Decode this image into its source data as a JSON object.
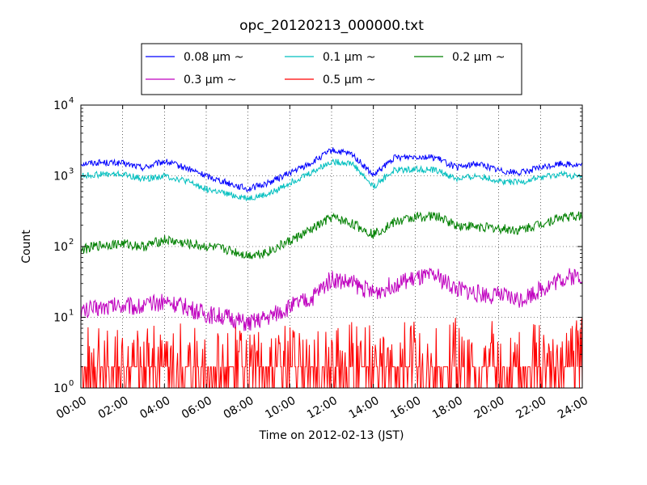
{
  "chart_data": {
    "type": "line",
    "title": "opc_20120213_000000.txt",
    "xlabel": "Time on 2012-02-13 (JST)",
    "ylabel": "Count",
    "yscale": "log",
    "ylim": [
      1,
      10000
    ],
    "xlim": [
      "00:00",
      "24:00"
    ],
    "x_ticks": [
      "00:00",
      "02:00",
      "04:00",
      "06:00",
      "08:00",
      "10:00",
      "12:00",
      "14:00",
      "16:00",
      "18:00",
      "20:00",
      "22:00",
      "24:00"
    ],
    "y_ticks": [
      {
        "value": 1,
        "base": "10",
        "exp": "0"
      },
      {
        "value": 10,
        "base": "10",
        "exp": "1"
      },
      {
        "value": 100,
        "base": "10",
        "exp": "2"
      },
      {
        "value": 1000,
        "base": "10",
        "exp": "3"
      },
      {
        "value": 10000,
        "base": "10",
        "exp": "4"
      }
    ],
    "grid": true,
    "legend": {
      "placement": "top-center",
      "columns": 3
    },
    "x": [
      "00:00",
      "01:00",
      "02:00",
      "03:00",
      "04:00",
      "05:00",
      "06:00",
      "07:00",
      "08:00",
      "09:00",
      "10:00",
      "11:00",
      "12:00",
      "13:00",
      "14:00",
      "15:00",
      "16:00",
      "17:00",
      "18:00",
      "19:00",
      "20:00",
      "21:00",
      "22:00",
      "23:00",
      "24:00"
    ],
    "series": [
      {
        "name": "0.08 μm ~",
        "color": "#0000ff",
        "values": [
          1500,
          1550,
          1500,
          1300,
          1600,
          1300,
          1000,
          800,
          650,
          800,
          1100,
          1500,
          2300,
          2000,
          1000,
          1800,
          1900,
          1800,
          1300,
          1500,
          1200,
          1100,
          1300,
          1500,
          1400
        ]
      },
      {
        "name": "0.1 μm ~",
        "color": "#00bfbf",
        "values": [
          1000,
          1050,
          1050,
          900,
          1000,
          850,
          650,
          550,
          480,
          550,
          800,
          1100,
          1600,
          1500,
          700,
          1200,
          1250,
          1200,
          900,
          1000,
          850,
          800,
          950,
          1050,
          950
        ]
      },
      {
        "name": "0.2 μm ~",
        "color": "#008000",
        "values": [
          90,
          105,
          110,
          100,
          125,
          110,
          100,
          90,
          75,
          85,
          120,
          170,
          260,
          210,
          150,
          220,
          260,
          270,
          200,
          190,
          180,
          170,
          210,
          260,
          270
        ]
      },
      {
        "name": "0.3 μm ~",
        "color": "#bf00bf",
        "values": [
          12,
          14,
          15,
          14,
          17,
          14,
          11,
          10,
          8,
          10,
          14,
          18,
          35,
          30,
          22,
          30,
          35,
          38,
          25,
          22,
          20,
          18,
          25,
          35,
          40
        ]
      },
      {
        "name": "0.5 μm ~",
        "color": "#ff0000",
        "values": [
          1.5,
          1.5,
          1.5,
          1.4,
          1.7,
          1.5,
          1.3,
          1.3,
          1.2,
          1.3,
          1.5,
          1.7,
          2.5,
          2.2,
          2,
          2.3,
          2.5,
          2.5,
          2.0,
          2.0,
          2.0,
          1.9,
          2.0,
          2.4,
          2.5
        ]
      }
    ]
  }
}
